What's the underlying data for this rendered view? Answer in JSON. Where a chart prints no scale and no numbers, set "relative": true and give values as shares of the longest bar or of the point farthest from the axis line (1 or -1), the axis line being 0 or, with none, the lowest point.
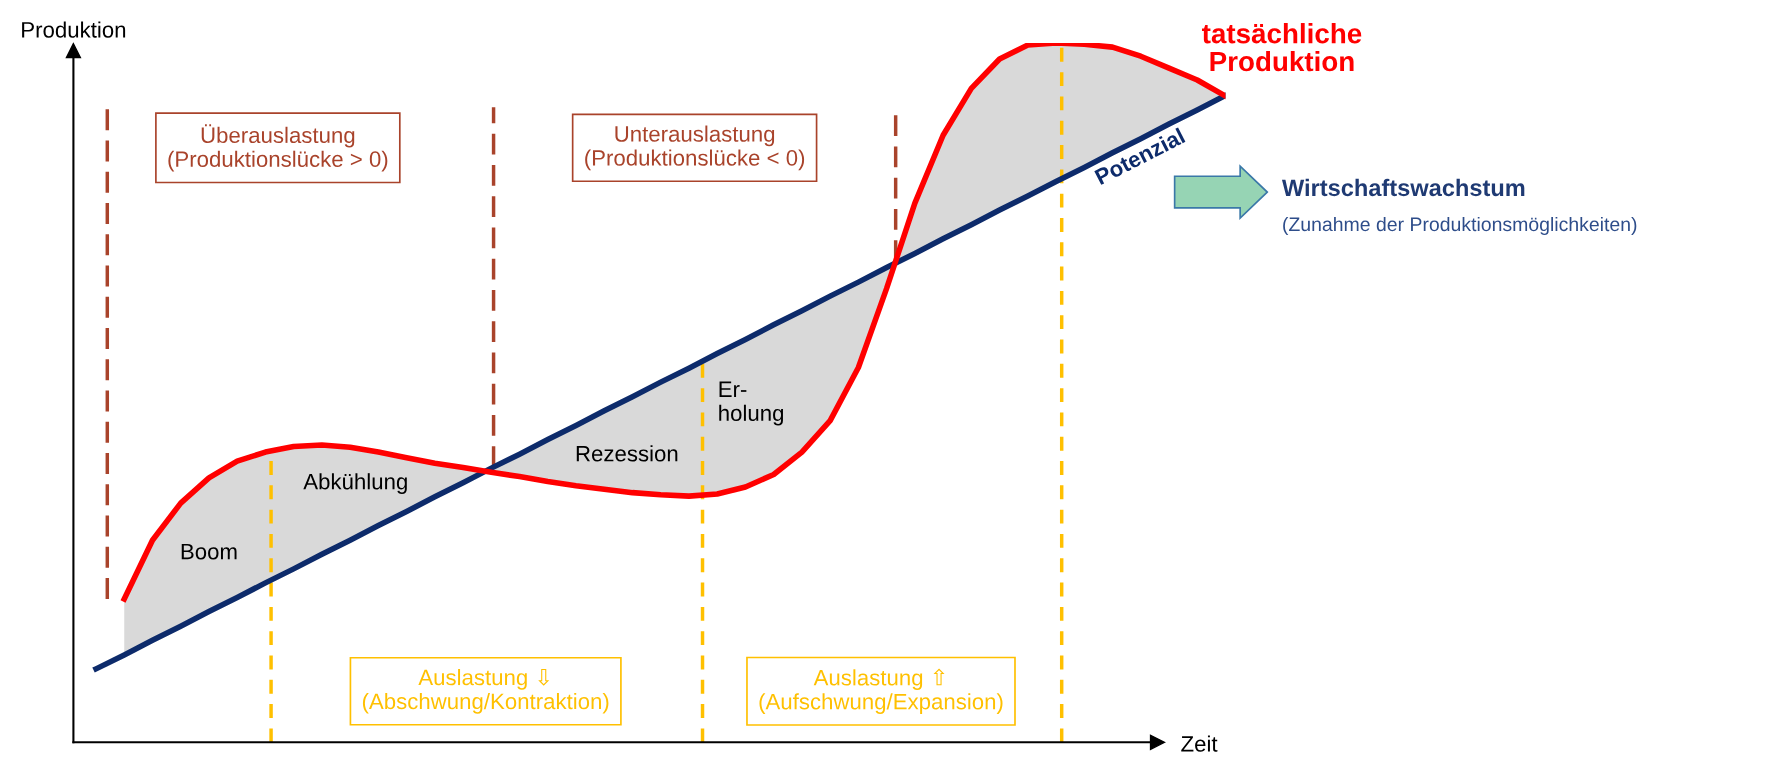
{
  "chart_data": {
    "type": "line",
    "relative": true,
    "xlabel": "Zeit",
    "ylabel": "Produktion",
    "legend": false,
    "grid": false,
    "marker": "none",
    "line_style": "solid",
    "categories": [
      null,
      null,
      null,
      null,
      null,
      null,
      null,
      null,
      null,
      null,
      null,
      null,
      null,
      null,
      null,
      null,
      null,
      null,
      null,
      null,
      null,
      null,
      null,
      null,
      null,
      null,
      null,
      null,
      null,
      null,
      null,
      null,
      null,
      null,
      null,
      null,
      null,
      null,
      null,
      null,
      null
    ],
    "series": [
      {
        "name": "Potenzial",
        "color": "#0d2b6b",
        "values": [
          0.105,
          0.125,
          0.146,
          0.166,
          0.187,
          0.207,
          0.228,
          0.248,
          0.269,
          0.289,
          0.31,
          0.33,
          0.351,
          0.371,
          0.392,
          0.412,
          0.433,
          0.453,
          0.474,
          0.494,
          0.515,
          0.535,
          0.556,
          0.576,
          0.597,
          0.617,
          0.638,
          0.658,
          0.679,
          0.699,
          0.72,
          0.74,
          0.761,
          0.781,
          0.802,
          0.822,
          0.843,
          0.863,
          0.884,
          0.904,
          0.925
        ]
      },
      {
        "name": "tatsächliche\nProduktion",
        "color": "#ff0000",
        "lower": [
          null,
          0.125,
          0.146,
          0.166,
          0.187,
          0.207,
          0.228,
          0.248,
          0.269,
          0.289,
          0.31,
          0.33,
          0.351,
          0.371,
          0.392,
          0.412,
          0.433,
          0.453,
          0.474,
          0.494,
          0.515,
          0.535,
          0.556,
          0.576,
          0.597,
          0.617,
          0.638,
          0.658,
          0.679,
          0.699,
          0.72,
          0.74,
          0.761,
          0.781,
          0.802,
          0.822,
          0.843,
          0.863,
          0.884,
          0.904,
          0.925
        ],
        "upper": [
          null,
          0.205,
          0.289,
          0.342,
          0.378,
          0.402,
          0.415,
          0.423,
          0.425,
          0.422,
          0.415,
          0.407,
          0.399,
          0.393,
          0.386,
          0.38,
          0.373,
          0.367,
          0.362,
          0.357,
          0.354,
          0.352,
          0.355,
          0.365,
          0.383,
          0.415,
          0.46,
          0.536,
          0.649,
          0.771,
          0.868,
          0.935,
          0.977,
          0.997,
          1.0,
          0.998,
          0.994,
          0.981,
          0.964,
          0.947,
          0.924
        ],
        "values": [
          null,
          0.205,
          0.289,
          0.342,
          0.378,
          0.402,
          0.415,
          0.423,
          0.425,
          0.422,
          0.415,
          0.407,
          0.399,
          0.393,
          0.386,
          0.38,
          0.373,
          0.367,
          0.362,
          0.357,
          0.354,
          0.352,
          0.355,
          0.365,
          0.383,
          0.415,
          0.46,
          0.536,
          0.649,
          0.771,
          0.868,
          0.935,
          0.977,
          0.997,
          1.0,
          0.998,
          0.994,
          0.981,
          0.964,
          0.947,
          0.924
        ]
      }
    ],
    "annotations": [
      "Überauslastung\n(Produktionslücke > 0)",
      "Unterauslastung\n(Produktionslücke < 0)",
      "Auslastung ⇩\n(Abschwung/Kontraktion)",
      "Auslastung ⇧\n(Aufschwung/Expansion)",
      "Boom",
      "Abkühlung",
      "Rezession",
      "Er-\nholung",
      "Wirtschaftswachstum",
      "(Zunahme der Produktionsmöglichkeiten)"
    ]
  }
}
